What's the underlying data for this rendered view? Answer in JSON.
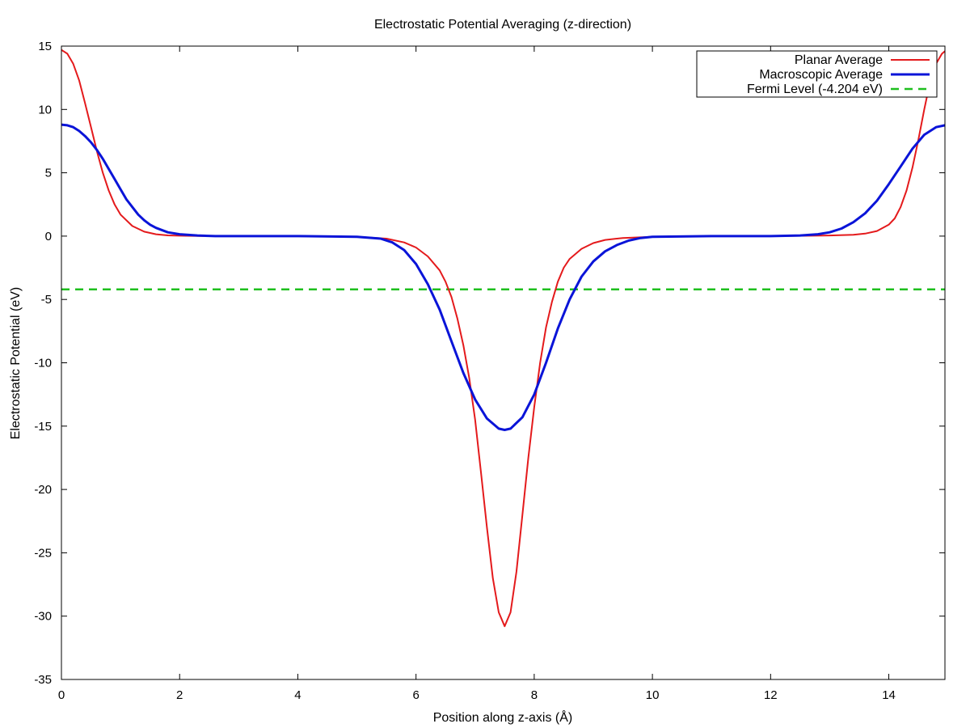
{
  "chart_data": {
    "type": "line",
    "title": "Electrostatic Potential Averaging (z-direction)",
    "xlabel": "Position along z-axis (Å)",
    "ylabel": "Electrostatic Potential (eV)",
    "xlim": [
      0,
      14.95
    ],
    "ylim": [
      -35,
      15
    ],
    "xticks": [
      0,
      2,
      4,
      6,
      8,
      10,
      12,
      14
    ],
    "yticks": [
      15,
      10,
      5,
      0,
      -5,
      -10,
      -15,
      -20,
      -25,
      -30,
      -35
    ],
    "grid": false,
    "legend_position": "top-right",
    "series": [
      {
        "name": "Planar Average",
        "color": "#e41a1c",
        "style": "solid",
        "x": [
          0,
          0.1,
          0.2,
          0.3,
          0.4,
          0.5,
          0.6,
          0.7,
          0.8,
          0.9,
          1.0,
          1.2,
          1.4,
          1.6,
          1.8,
          2.0,
          2.5,
          3.0,
          4.0,
          5.0,
          5.5,
          5.8,
          6.0,
          6.2,
          6.4,
          6.5,
          6.6,
          6.7,
          6.8,
          6.9,
          7.0,
          7.1,
          7.2,
          7.3,
          7.4,
          7.5,
          7.6,
          7.7,
          7.8,
          7.9,
          8.0,
          8.1,
          8.2,
          8.3,
          8.4,
          8.5,
          8.6,
          8.8,
          9.0,
          9.2,
          9.5,
          10.0,
          11.0,
          12.0,
          13.0,
          13.4,
          13.6,
          13.8,
          14.0,
          14.1,
          14.2,
          14.3,
          14.4,
          14.5,
          14.6,
          14.7,
          14.8,
          14.9,
          14.95
        ],
        "y": [
          14.7,
          14.4,
          13.6,
          12.3,
          10.5,
          8.6,
          6.7,
          5.0,
          3.6,
          2.5,
          1.7,
          0.8,
          0.35,
          0.15,
          0.06,
          0.03,
          0.0,
          0.0,
          0.0,
          -0.05,
          -0.2,
          -0.5,
          -0.9,
          -1.6,
          -2.7,
          -3.6,
          -4.8,
          -6.5,
          -8.6,
          -11.2,
          -14.5,
          -18.7,
          -23.0,
          -27.0,
          -29.7,
          -30.8,
          -29.7,
          -26.5,
          -22.0,
          -17.5,
          -13.5,
          -10.0,
          -7.2,
          -5.2,
          -3.6,
          -2.5,
          -1.8,
          -1.0,
          -0.55,
          -0.3,
          -0.15,
          -0.05,
          0.0,
          0.0,
          0.05,
          0.1,
          0.2,
          0.4,
          0.9,
          1.4,
          2.3,
          3.6,
          5.4,
          7.6,
          10.0,
          12.2,
          13.6,
          14.4,
          14.6
        ]
      },
      {
        "name": "Macroscopic Average",
        "color": "#0a14d8",
        "style": "solid",
        "x": [
          0,
          0.1,
          0.2,
          0.3,
          0.4,
          0.5,
          0.6,
          0.7,
          0.8,
          0.9,
          1.0,
          1.1,
          1.2,
          1.3,
          1.4,
          1.5,
          1.6,
          1.8,
          2.0,
          2.3,
          2.6,
          3.0,
          4.0,
          5.0,
          5.4,
          5.6,
          5.8,
          6.0,
          6.2,
          6.4,
          6.6,
          6.8,
          7.0,
          7.2,
          7.4,
          7.5,
          7.6,
          7.8,
          8.0,
          8.2,
          8.4,
          8.6,
          8.8,
          9.0,
          9.2,
          9.4,
          9.6,
          9.8,
          10.0,
          11.0,
          12.0,
          12.5,
          12.8,
          13.0,
          13.2,
          13.4,
          13.6,
          13.8,
          14.0,
          14.2,
          14.4,
          14.6,
          14.8,
          14.95
        ],
        "y": [
          8.8,
          8.75,
          8.6,
          8.3,
          7.9,
          7.4,
          6.8,
          6.1,
          5.3,
          4.5,
          3.7,
          2.9,
          2.3,
          1.7,
          1.25,
          0.9,
          0.65,
          0.3,
          0.15,
          0.05,
          0.0,
          0.0,
          0.0,
          -0.05,
          -0.2,
          -0.5,
          -1.1,
          -2.2,
          -3.8,
          -5.8,
          -8.3,
          -10.8,
          -12.9,
          -14.4,
          -15.2,
          -15.3,
          -15.2,
          -14.3,
          -12.5,
          -10.0,
          -7.3,
          -5.0,
          -3.2,
          -2.0,
          -1.2,
          -0.7,
          -0.35,
          -0.15,
          -0.05,
          0.0,
          0.0,
          0.05,
          0.15,
          0.3,
          0.6,
          1.1,
          1.8,
          2.8,
          4.1,
          5.5,
          6.9,
          8.0,
          8.6,
          8.75
        ]
      },
      {
        "name": "Fermi Level (-4.204 eV)",
        "color": "#1fbf1f",
        "style": "dashed",
        "x": [
          0,
          14.95
        ],
        "y": [
          -4.204,
          -4.204
        ]
      }
    ]
  }
}
